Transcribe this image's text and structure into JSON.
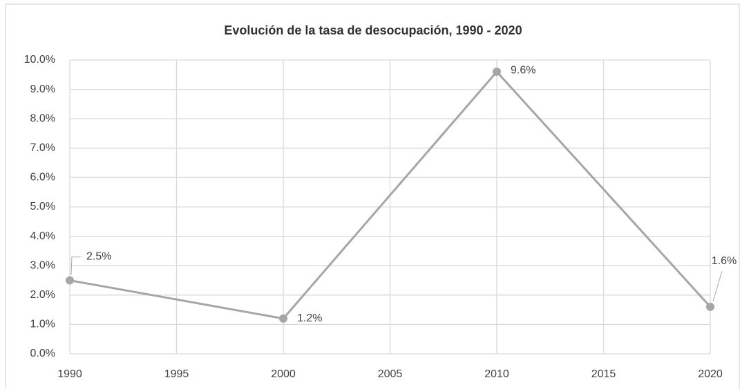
{
  "chart_data": {
    "type": "line",
    "title": "Evolución de la tasa de desocupación, 1990 - 2020",
    "x": [
      1990,
      2000,
      2010,
      2020
    ],
    "xlim": [
      1990,
      2020
    ],
    "xticks": [
      1990,
      1995,
      2000,
      2005,
      2010,
      2015,
      2020
    ],
    "ylim": [
      0,
      10
    ],
    "yticks": [
      {
        "value": 0,
        "label": "0.0%"
      },
      {
        "value": 1,
        "label": "1.0%"
      },
      {
        "value": 2,
        "label": "2.0%"
      },
      {
        "value": 3,
        "label": "3.0%"
      },
      {
        "value": 4,
        "label": "4.0%"
      },
      {
        "value": 5,
        "label": "5.0%"
      },
      {
        "value": 6,
        "label": "6.0%"
      },
      {
        "value": 7,
        "label": "7.0%"
      },
      {
        "value": 8,
        "label": "8.0%"
      },
      {
        "value": 9,
        "label": "9.0%"
      },
      {
        "value": 10,
        "label": "10.0%"
      }
    ],
    "grid": true,
    "color": "#a6a6a6",
    "values": [
      2.5,
      1.2,
      9.6,
      1.6
    ],
    "value_labels": [
      "2.5%",
      "1.2%",
      "9.6%",
      "1.6%"
    ]
  }
}
